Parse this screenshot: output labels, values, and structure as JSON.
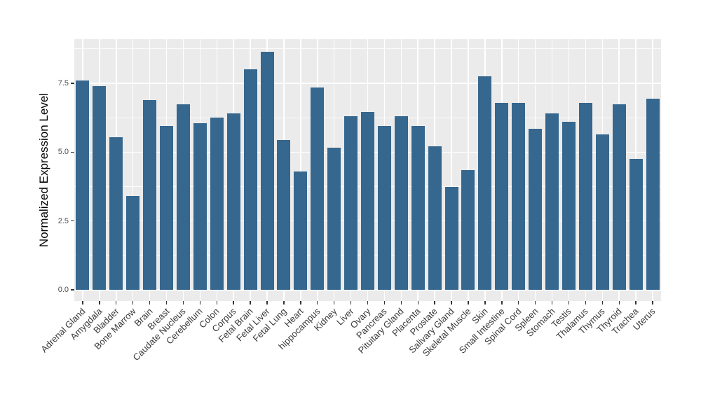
{
  "chart_data": {
    "type": "bar",
    "title": "",
    "xlabel": "",
    "ylabel": "Normalized Expression Level",
    "categories": [
      "Adrenal Gland",
      "Amygdala",
      "Bladder",
      "Bone Marrow",
      "Brain",
      "Breast",
      "Caudate Nucleus",
      "Cerebellum",
      "Colon",
      "Corpus",
      "Fetal Brain",
      "Fetal Liver",
      "Fetal Lung",
      "Heart",
      "hippocampus",
      "Kidney",
      "Liver",
      "Ovary",
      "Pancreas",
      "Pituitary Gland",
      "Placenta",
      "Prostate",
      "Salivary Gland",
      "Skeletal Muscle",
      "Skin",
      "Small Intestine",
      "Spinal Cord",
      "Spleen",
      "Stomach",
      "Testis",
      "Thalamus",
      "Thymus",
      "Thyroid",
      "Trachea",
      "Uterus"
    ],
    "values": [
      7.6,
      7.4,
      5.55,
      3.4,
      6.9,
      5.95,
      6.75,
      6.05,
      6.25,
      6.4,
      8.0,
      8.65,
      5.45,
      4.3,
      7.35,
      5.15,
      6.3,
      6.45,
      5.95,
      6.3,
      5.95,
      5.2,
      3.75,
      4.35,
      7.75,
      6.8,
      6.8,
      5.85,
      6.4,
      6.1,
      6.8,
      5.65,
      6.75,
      4.75,
      6.95
    ],
    "y_ticks": [
      0,
      2.5,
      5,
      7.5
    ],
    "y_tick_labels": [
      "0.0",
      "2.5",
      "5.0",
      "7.5"
    ],
    "ylim": [
      0,
      9.1
    ],
    "grid": {
      "major": true,
      "minor": true,
      "vertical_at_category_centers": true
    },
    "legend": "none",
    "bar_orientation": "vertical",
    "x_label_angle_degrees": 45,
    "colors": {
      "bar_fill": "#36678F",
      "panel_background": "#EBEBEB",
      "grid_line": "#FFFFFF",
      "tick_mark": "#333333",
      "y_tick_label": "#4D4D4D",
      "x_tick_label": "#3A3A3A",
      "axis_title": "#000000",
      "figure_background": "#FFFFFF"
    }
  }
}
